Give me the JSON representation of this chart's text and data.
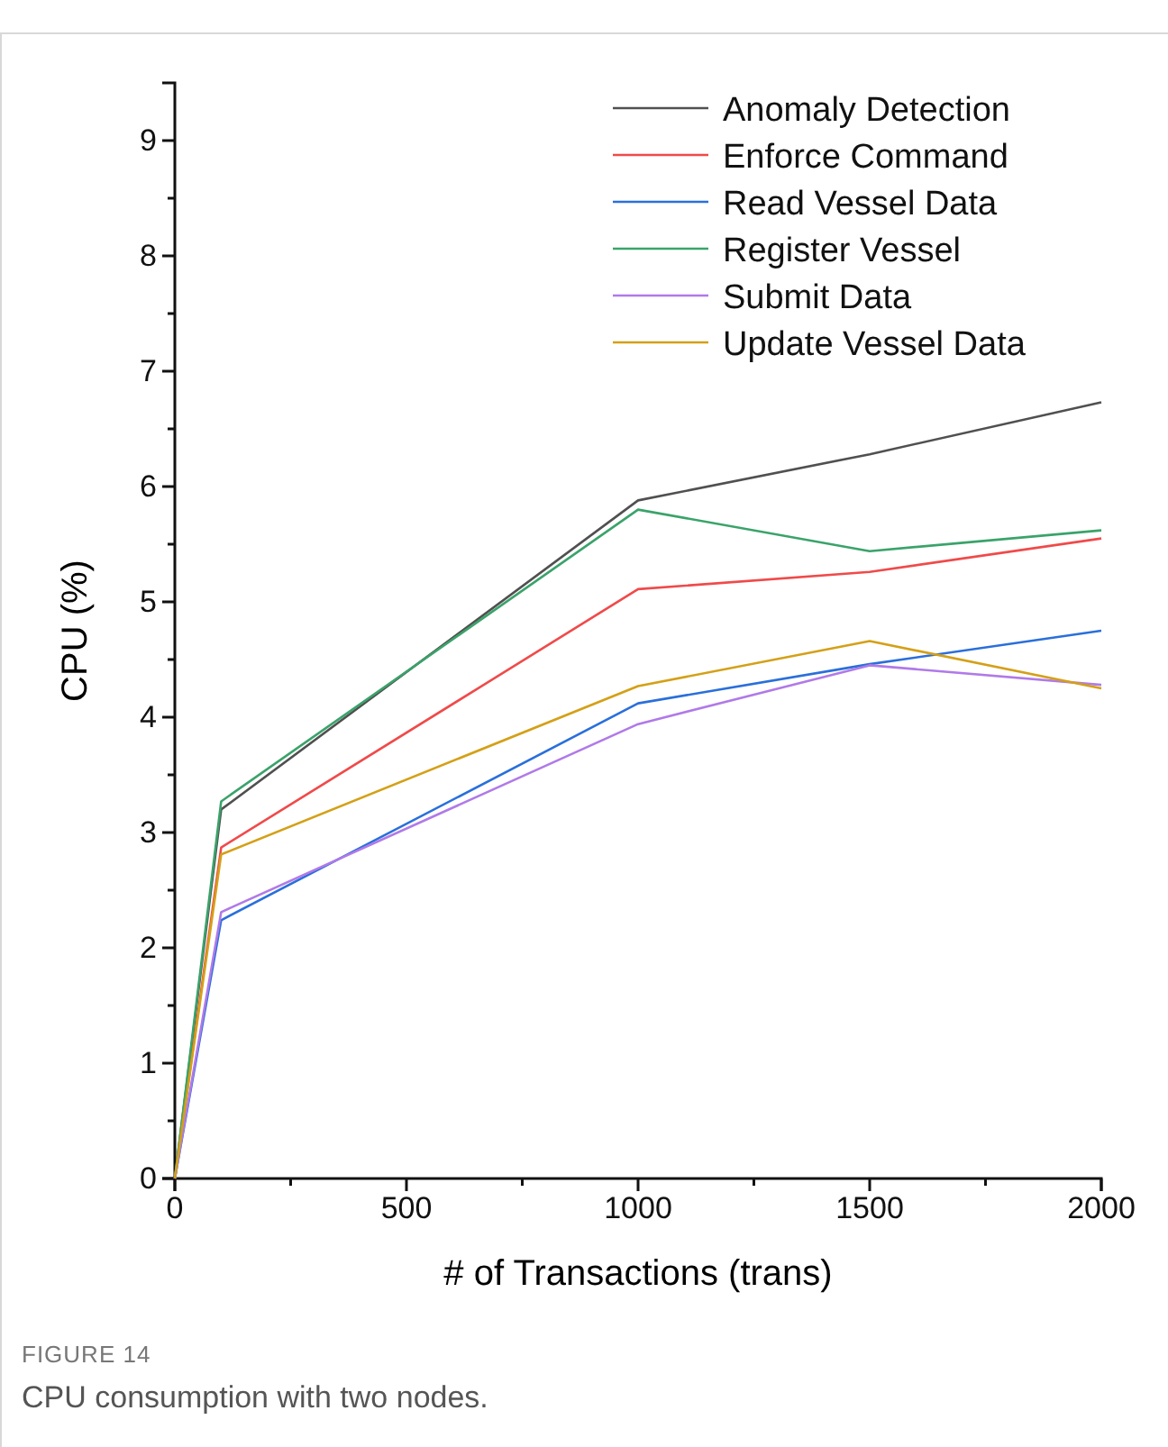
{
  "chart_data": {
    "type": "line",
    "xlabel": "# of Transactions (trans)",
    "ylabel": "CPU (%)",
    "x": [
      0,
      100,
      1000,
      1500,
      2000
    ],
    "series": [
      {
        "name": "Anomaly Detection",
        "color": "#505050",
        "values": [
          0,
          3.2,
          5.88,
          6.28,
          6.73
        ]
      },
      {
        "name": "Enforce Command",
        "color": "#f04a4a",
        "values": [
          0,
          2.87,
          5.11,
          5.26,
          5.55
        ]
      },
      {
        "name": "Read Vessel Data",
        "color": "#2a6fdb",
        "values": [
          0,
          2.24,
          4.12,
          4.46,
          4.75
        ]
      },
      {
        "name": "Register Vessel",
        "color": "#3aa36a",
        "values": [
          0,
          3.27,
          5.8,
          5.44,
          5.62
        ]
      },
      {
        "name": "Submit Data",
        "color": "#b07ae8",
        "values": [
          0,
          2.31,
          3.94,
          4.45,
          4.28
        ]
      },
      {
        "name": "Update Vessel Data",
        "color": "#d4a017",
        "values": [
          0,
          2.81,
          4.27,
          4.66,
          4.25
        ]
      }
    ],
    "xlim": [
      0,
      2000
    ],
    "ylim": [
      0,
      9.5
    ],
    "xticks": [
      0,
      {
        "value": 250,
        "label": null
      },
      500,
      {
        "value": 750,
        "label": null
      },
      1000,
      {
        "value": 1250,
        "label": null
      },
      1500,
      {
        "value": 1750,
        "label": null
      },
      2000
    ],
    "yticks": [
      0,
      {
        "value": 0.5,
        "label": null
      },
      1,
      {
        "value": 1.5,
        "label": null
      },
      2,
      {
        "value": 2.5,
        "label": null
      },
      3,
      {
        "value": 3.5,
        "label": null
      },
      4,
      {
        "value": 4.5,
        "label": null
      },
      5,
      {
        "value": 5.5,
        "label": null
      },
      6,
      {
        "value": 6.5,
        "label": null
      },
      7,
      {
        "value": 7.5,
        "label": null
      },
      8,
      {
        "value": 8.5,
        "label": null
      },
      9
    ],
    "grid": false,
    "legend": "top right",
    "marker": "none",
    "line_style": "solid",
    "annotations": [
      "FIGURE 14",
      "CPU consumption with two nodes."
    ]
  }
}
